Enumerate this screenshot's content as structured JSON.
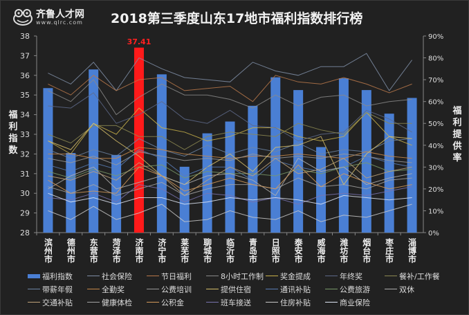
{
  "logo": {
    "name": "齐鲁人才网",
    "url": "www.qlrc.com"
  },
  "chart_data": {
    "type": "bar+line",
    "title": "2018第三季度山东17地市福利指数排行榜",
    "ylabel_left": "福利指数",
    "ylabel_right": "福利提供率",
    "ylim_left": [
      28,
      38
    ],
    "ylim_right": [
      0,
      90
    ],
    "yticks_left": [
      "28",
      "29",
      "30",
      "31",
      "32",
      "33",
      "34",
      "35",
      "36",
      "37",
      "38"
    ],
    "yticks_right": [
      "0%",
      "10%",
      "20%",
      "30%",
      "40%",
      "50%",
      "60%",
      "70%",
      "80%",
      "90%"
    ],
    "categories": [
      "滨州市",
      "德州市",
      "东营市",
      "菏泽市",
      "济南市",
      "济宁市",
      "莱芜市",
      "聊城市",
      "临沂市",
      "青岛市",
      "日照市",
      "泰安市",
      "威海市",
      "潍坊市",
      "烟台市",
      "枣庄市",
      "淄博市"
    ],
    "bar_series": {
      "name": "福利指数",
      "color": "#4a7fd4",
      "highlight_color": "#ff1a1a",
      "highlight_index": 4,
      "highlight_label": "37.41",
      "values": [
        35.35,
        32.05,
        36.3,
        31.95,
        37.41,
        36.05,
        31.35,
        33.05,
        33.65,
        34.45,
        35.9,
        35.25,
        32.35,
        35.85,
        35.25,
        34.05,
        34.85
      ]
    },
    "line_series": [
      {
        "name": "社会保险",
        "color": "#7f8ea6",
        "values": [
          73,
          68,
          78,
          65,
          80,
          75,
          71,
          70,
          69,
          78,
          74,
          72,
          76,
          76,
          82,
          65,
          79
        ]
      },
      {
        "name": "节日福利",
        "color": "#b9784a",
        "values": [
          68,
          63,
          72,
          65,
          70,
          71,
          65,
          66,
          67,
          60,
          72,
          69,
          68,
          71,
          68,
          64,
          68
        ]
      },
      {
        "name": "8小时工作制",
        "color": "#8a8a8a",
        "values": [
          65,
          60,
          70,
          54,
          62,
          68,
          63,
          63,
          61,
          57,
          63,
          58,
          62,
          63,
          58,
          60,
          61
        ]
      },
      {
        "name": "奖金提成",
        "color": "#c9b24a",
        "values": [
          42,
          36,
          50,
          45,
          57,
          48,
          46,
          42,
          44,
          48,
          48,
          44,
          42,
          44,
          55,
          44,
          40
        ]
      },
      {
        "name": "年终奖",
        "color": "#5e6a8a",
        "values": [
          58,
          57,
          64,
          50,
          54,
          60,
          52,
          50,
          56,
          49,
          48,
          42,
          45,
          46,
          56,
          52,
          46
        ]
      },
      {
        "name": "餐补/工作餐",
        "color": "#8d8a52",
        "values": [
          45,
          41,
          49,
          49,
          44,
          44,
          38,
          44,
          46,
          45,
          44,
          50,
          47,
          45,
          55,
          50,
          50
        ]
      },
      {
        "name": "带薪年假",
        "color": "#6f86a6",
        "values": [
          38,
          34,
          38,
          35,
          43,
          38,
          35,
          40,
          36,
          39,
          37,
          41,
          36,
          38,
          37,
          42,
          43
        ]
      },
      {
        "name": "全勤奖",
        "color": "#c98a4a",
        "values": [
          36,
          36,
          34,
          34,
          39,
          38,
          36,
          35,
          34,
          35,
          35,
          36,
          35,
          34,
          37,
          35,
          34
        ]
      },
      {
        "name": "公费培训",
        "color": "#9a9a9a",
        "values": [
          34,
          32,
          35,
          31,
          37,
          35,
          33,
          34,
          33,
          36,
          34,
          35,
          34,
          36,
          35,
          33,
          32
        ]
      },
      {
        "name": "提供住宿",
        "color": "#d8c06a",
        "values": [
          42,
          38,
          50,
          42,
          35,
          26,
          22,
          30,
          36,
          28,
          39,
          40,
          44,
          22,
          36,
          44,
          43
        ]
      },
      {
        "name": "通讯补贴",
        "color": "#5b7fb8",
        "values": [
          31,
          28,
          32,
          29,
          38,
          34,
          26,
          30,
          30,
          24,
          33,
          30,
          28,
          30,
          35,
          32,
          30
        ]
      },
      {
        "name": "公费旅游",
        "color": "#7a9a6a",
        "values": [
          28,
          25,
          29,
          26,
          30,
          31,
          25,
          28,
          27,
          27,
          26,
          29,
          27,
          30,
          32,
          28,
          29
        ]
      },
      {
        "name": "双休",
        "color": "#b0b0b0",
        "values": [
          20,
          26,
          30,
          20,
          23,
          26,
          22,
          26,
          27,
          24,
          17,
          34,
          28,
          30,
          22,
          25,
          27
        ]
      },
      {
        "name": "交通补贴",
        "color": "#bfa37a",
        "values": [
          26,
          24,
          28,
          24,
          32,
          26,
          17,
          24,
          30,
          26,
          34,
          27,
          29,
          34,
          25,
          28,
          30
        ]
      },
      {
        "name": "健康体检",
        "color": "#a4a4a4",
        "values": [
          21,
          18,
          22,
          17,
          20,
          23,
          17,
          20,
          22,
          22,
          20,
          25,
          21,
          22,
          20,
          24,
          25
        ]
      },
      {
        "name": "公积金",
        "color": "#d49a5a",
        "values": [
          24,
          18,
          19,
          18,
          30,
          26,
          19,
          22,
          25,
          22,
          20,
          31,
          21,
          27,
          23,
          20,
          22
        ]
      },
      {
        "name": "班车接送",
        "color": "#7a74b0",
        "values": [
          16,
          15,
          18,
          14,
          22,
          20,
          14,
          18,
          17,
          14,
          16,
          13,
          17,
          18,
          17,
          19,
          21
        ]
      },
      {
        "name": "住房补贴",
        "color": "#c8c8c8",
        "values": [
          10,
          6,
          12,
          6,
          9,
          13,
          5,
          6,
          10,
          7,
          6,
          10,
          5,
          8,
          7,
          10,
          13
        ]
      },
      {
        "name": "商业保险",
        "color": "#dfe6f5",
        "values": [
          18,
          14,
          16,
          13,
          16,
          16,
          13,
          14,
          16,
          15,
          16,
          15,
          13,
          17,
          16,
          15,
          16
        ]
      }
    ],
    "grid": false,
    "legend_placement": "bottom"
  }
}
